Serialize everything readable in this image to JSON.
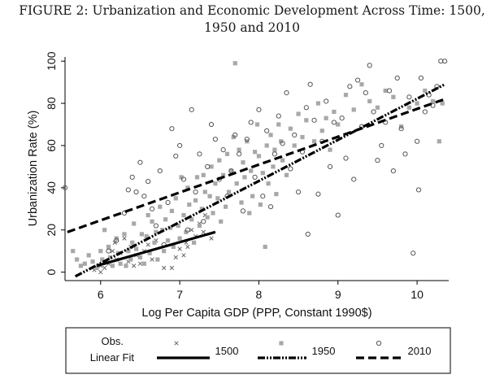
{
  "figure": {
    "title_line1": "FIGURE 2: Urbanization and Economic Development Across Time: 1500,",
    "title_line2": "1950 and 2010"
  },
  "legend": {
    "obs_label": "Obs.",
    "fit_label": "Linear Fit"
  },
  "chart_data": {
    "type": "scatter",
    "title": "FIGURE 2: Urbanization and Economic Development Across Time: 1500, 1950 and 2010",
    "xlabel": "Log Per Capita GDP (PPP, Constant 1990$)",
    "ylabel": "Urbanization Rate (%)",
    "xlim": [
      5.55,
      10.4
    ],
    "ylim": [
      -4,
      102
    ],
    "xticks": [
      6,
      7,
      8,
      9,
      10
    ],
    "yticks": [
      0,
      20,
      40,
      60,
      80,
      100
    ],
    "grid": false,
    "legend_position": "bottom",
    "series": [
      {
        "name": "1500",
        "marker": "x",
        "color": "#666666",
        "points": [
          [
            5.92,
            1
          ],
          [
            6.0,
            3
          ],
          [
            6.0,
            0
          ],
          [
            6.05,
            2
          ],
          [
            6.1,
            4
          ],
          [
            6.15,
            10
          ],
          [
            6.18,
            14
          ],
          [
            6.2,
            6
          ],
          [
            6.25,
            9
          ],
          [
            6.3,
            16
          ],
          [
            6.35,
            5
          ],
          [
            6.38,
            12
          ],
          [
            6.42,
            3
          ],
          [
            6.45,
            8
          ],
          [
            6.5,
            4
          ],
          [
            6.55,
            10
          ],
          [
            6.6,
            13
          ],
          [
            6.65,
            6
          ],
          [
            6.7,
            15
          ],
          [
            6.8,
            2
          ],
          [
            6.9,
            2
          ],
          [
            6.95,
            7
          ],
          [
            7.0,
            11
          ],
          [
            7.05,
            8
          ],
          [
            7.08,
            14
          ],
          [
            7.1,
            12
          ],
          [
            7.15,
            20
          ],
          [
            7.2,
            17
          ],
          [
            7.25,
            23
          ],
          [
            7.3,
            19
          ],
          [
            7.32,
            27
          ],
          [
            7.4,
            16
          ]
        ],
        "fit": {
          "x": [
            5.95,
            7.45
          ],
          "y": [
            3,
            19
          ]
        }
      },
      {
        "name": "1950",
        "marker": "square",
        "color": "#a8a8a8",
        "points": [
          [
            5.65,
            10
          ],
          [
            5.7,
            6
          ],
          [
            5.75,
            3
          ],
          [
            5.8,
            4
          ],
          [
            5.85,
            8
          ],
          [
            5.9,
            5
          ],
          [
            5.95,
            2
          ],
          [
            6.0,
            10
          ],
          [
            6.02,
            6
          ],
          [
            6.05,
            20
          ],
          [
            6.1,
            12
          ],
          [
            6.12,
            7
          ],
          [
            6.15,
            3
          ],
          [
            6.2,
            16
          ],
          [
            6.22,
            9
          ],
          [
            6.25,
            4
          ],
          [
            6.3,
            18
          ],
          [
            6.32,
            3
          ],
          [
            6.35,
            10
          ],
          [
            6.38,
            6
          ],
          [
            6.4,
            14
          ],
          [
            6.42,
            23
          ],
          [
            6.45,
            11
          ],
          [
            6.5,
            7
          ],
          [
            6.52,
            18
          ],
          [
            6.55,
            4
          ],
          [
            6.58,
            17
          ],
          [
            6.6,
            27
          ],
          [
            6.62,
            9
          ],
          [
            6.65,
            24
          ],
          [
            6.68,
            14
          ],
          [
            6.7,
            19
          ],
          [
            6.72,
            6
          ],
          [
            6.75,
            31
          ],
          [
            6.78,
            20
          ],
          [
            6.8,
            10
          ],
          [
            6.82,
            25
          ],
          [
            6.85,
            15
          ],
          [
            6.88,
            21
          ],
          [
            6.9,
            29
          ],
          [
            6.92,
            12
          ],
          [
            6.95,
            35
          ],
          [
            6.98,
            22
          ],
          [
            7.0,
            16
          ],
          [
            7.02,
            45
          ],
          [
            7.05,
            27
          ],
          [
            7.08,
            19
          ],
          [
            7.1,
            40
          ],
          [
            7.12,
            32
          ],
          [
            7.15,
            25
          ],
          [
            7.18,
            14
          ],
          [
            7.2,
            34
          ],
          [
            7.22,
            45
          ],
          [
            7.25,
            22
          ],
          [
            7.28,
            30
          ],
          [
            7.3,
            46
          ],
          [
            7.32,
            38
          ],
          [
            7.35,
            26
          ],
          [
            7.38,
            36
          ],
          [
            7.4,
            50
          ],
          [
            7.42,
            28
          ],
          [
            7.45,
            42
          ],
          [
            7.48,
            35
          ],
          [
            7.5,
            53
          ],
          [
            7.52,
            24
          ],
          [
            7.55,
            46
          ],
          [
            7.58,
            31
          ],
          [
            7.6,
            56
          ],
          [
            7.62,
            38
          ],
          [
            7.65,
            48
          ],
          [
            7.68,
            64
          ],
          [
            7.7,
            99
          ],
          [
            7.72,
            42
          ],
          [
            7.75,
            58
          ],
          [
            7.78,
            33
          ],
          [
            7.8,
            52
          ],
          [
            7.82,
            45
          ],
          [
            7.85,
            62
          ],
          [
            7.88,
            28
          ],
          [
            7.9,
            48
          ],
          [
            7.92,
            36
          ],
          [
            7.95,
            57
          ],
          [
            7.98,
            70
          ],
          [
            8.0,
            55
          ],
          [
            8.02,
            32
          ],
          [
            8.05,
            47
          ],
          [
            8.08,
            12
          ],
          [
            8.1,
            60
          ],
          [
            8.12,
            42
          ],
          [
            8.15,
            65
          ],
          [
            8.18,
            50
          ],
          [
            8.2,
            58
          ],
          [
            8.22,
            37
          ],
          [
            8.25,
            70
          ],
          [
            8.28,
            62
          ],
          [
            8.3,
            53
          ],
          [
            8.35,
            46
          ],
          [
            8.4,
            68
          ],
          [
            8.45,
            60
          ],
          [
            8.5,
            75
          ],
          [
            8.55,
            64
          ],
          [
            8.6,
            72
          ],
          [
            8.7,
            62
          ],
          [
            8.75,
            80
          ],
          [
            8.8,
            67
          ],
          [
            8.85,
            73
          ],
          [
            8.9,
            58
          ],
          [
            8.95,
            76
          ],
          [
            9.0,
            70
          ],
          [
            9.1,
            84
          ],
          [
            9.2,
            77
          ],
          [
            9.3,
            89
          ],
          [
            9.4,
            81
          ],
          [
            9.5,
            78
          ],
          [
            9.6,
            86
          ],
          [
            9.7,
            83
          ],
          [
            9.8,
            69
          ],
          [
            9.9,
            78
          ],
          [
            10.0,
            80
          ],
          [
            10.1,
            86
          ],
          [
            10.2,
            81
          ],
          [
            10.28,
            62
          ],
          [
            10.32,
            80
          ]
        ],
        "fit": {
          "x": [
            5.68,
            10.35
          ],
          "y": [
            -2,
            89
          ]
        }
      },
      {
        "name": "2010",
        "marker": "circle",
        "color": "#555555",
        "points": [
          [
            5.55,
            40
          ],
          [
            6.1,
            10
          ],
          [
            6.2,
            15
          ],
          [
            6.3,
            28
          ],
          [
            6.35,
            39
          ],
          [
            6.4,
            45
          ],
          [
            6.45,
            38
          ],
          [
            6.5,
            52
          ],
          [
            6.55,
            36
          ],
          [
            6.6,
            43
          ],
          [
            6.65,
            30
          ],
          [
            6.7,
            22
          ],
          [
            6.75,
            48
          ],
          [
            6.8,
            13
          ],
          [
            6.85,
            33
          ],
          [
            6.9,
            68
          ],
          [
            6.95,
            55
          ],
          [
            7.0,
            60
          ],
          [
            7.05,
            44
          ],
          [
            7.1,
            20
          ],
          [
            7.15,
            77
          ],
          [
            7.2,
            38
          ],
          [
            7.25,
            56
          ],
          [
            7.3,
            24
          ],
          [
            7.35,
            50
          ],
          [
            7.4,
            70
          ],
          [
            7.45,
            63
          ],
          [
            7.5,
            44
          ],
          [
            7.55,
            58
          ],
          [
            7.6,
            36
          ],
          [
            7.65,
            48
          ],
          [
            7.7,
            65
          ],
          [
            7.75,
            56
          ],
          [
            7.8,
            29
          ],
          [
            7.85,
            63
          ],
          [
            7.9,
            71
          ],
          [
            7.95,
            45
          ],
          [
            8.0,
            77
          ],
          [
            8.05,
            36
          ],
          [
            8.1,
            67
          ],
          [
            8.15,
            31
          ],
          [
            8.2,
            56
          ],
          [
            8.25,
            74
          ],
          [
            8.3,
            61
          ],
          [
            8.35,
            85
          ],
          [
            8.4,
            49
          ],
          [
            8.45,
            65
          ],
          [
            8.5,
            38
          ],
          [
            8.55,
            57
          ],
          [
            8.6,
            78
          ],
          [
            8.62,
            18
          ],
          [
            8.65,
            89
          ],
          [
            8.7,
            72
          ],
          [
            8.75,
            37
          ],
          [
            8.8,
            62
          ],
          [
            8.85,
            81
          ],
          [
            8.9,
            50
          ],
          [
            8.95,
            71
          ],
          [
            9.0,
            27
          ],
          [
            9.05,
            73
          ],
          [
            9.1,
            54
          ],
          [
            9.15,
            88
          ],
          [
            9.2,
            44
          ],
          [
            9.25,
            91
          ],
          [
            9.3,
            69
          ],
          [
            9.35,
            85
          ],
          [
            9.4,
            98
          ],
          [
            9.45,
            76
          ],
          [
            9.5,
            53
          ],
          [
            9.55,
            60
          ],
          [
            9.6,
            71
          ],
          [
            9.65,
            86
          ],
          [
            9.7,
            48
          ],
          [
            9.75,
            92
          ],
          [
            9.8,
            68
          ],
          [
            9.85,
            56
          ],
          [
            9.9,
            83
          ],
          [
            9.95,
            9
          ],
          [
            10.0,
            62
          ],
          [
            10.02,
            39
          ],
          [
            10.05,
            92
          ],
          [
            10.1,
            76
          ],
          [
            10.15,
            84
          ],
          [
            10.2,
            79
          ],
          [
            10.25,
            88
          ],
          [
            10.3,
            100
          ],
          [
            10.35,
            100
          ]
        ],
        "fit": {
          "x": [
            5.58,
            10.35
          ],
          "y": [
            19,
            82
          ]
        }
      }
    ]
  }
}
